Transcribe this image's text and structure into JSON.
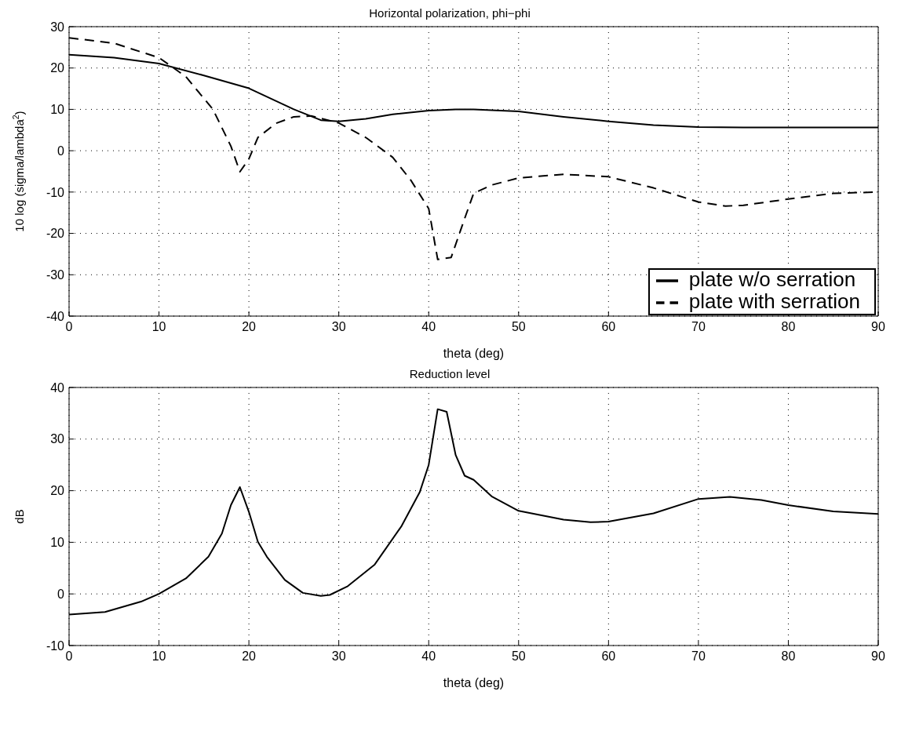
{
  "chart_data": [
    {
      "type": "line",
      "title": "Horizontal polarization, phi−phi",
      "xlabel": "theta (deg)",
      "ylabel": "10 log (sigma/lambda$^{2}$)",
      "xlim": [
        0,
        90
      ],
      "xticks": [
        0,
        10,
        20,
        30,
        40,
        50,
        60,
        70,
        80,
        90
      ],
      "ylim": [
        -40,
        30
      ],
      "yticks": [
        -40,
        -30,
        -20,
        -10,
        0,
        10,
        20,
        30
      ],
      "grid": true,
      "legend": "bottom right",
      "marker": "none",
      "series": [
        {
          "name": "plate w/o serration",
          "color": "#000000",
          "line_style": "solid",
          "x": [
            0,
            5,
            10,
            15,
            20,
            25,
            28,
            30,
            33,
            36,
            40,
            43,
            45,
            50,
            55,
            60,
            65,
            70,
            75,
            80,
            85,
            90
          ],
          "values": [
            23.2,
            22.5,
            21.1,
            18.2,
            15.1,
            10,
            7.4,
            7.1,
            7.7,
            8.8,
            9.7,
            10,
            10,
            9.5,
            8.2,
            7.1,
            6.2,
            5.7,
            5.6,
            5.6,
            5.6,
            5.6
          ]
        },
        {
          "name": "plate with serration",
          "color": "#000000",
          "line_style": "dashed",
          "x": [
            0,
            5,
            10,
            13,
            16,
            18,
            19,
            20,
            21,
            23,
            25,
            27,
            30,
            33,
            36,
            38,
            40,
            41,
            42.5,
            44,
            45,
            47,
            50,
            55,
            60,
            65,
            70,
            73,
            75,
            80,
            85,
            90
          ],
          "values": [
            27.3,
            26,
            22.5,
            17.9,
            10,
            1.1,
            -5.1,
            -2,
            3.2,
            6.6,
            8.2,
            8.4,
            6.7,
            3.2,
            -1.6,
            -7.1,
            -14,
            -26.3,
            -25.8,
            -16.4,
            -10.3,
            -8.3,
            -6.6,
            -5.7,
            -6.3,
            -9,
            -12.4,
            -13.4,
            -13.2,
            -11.7,
            -10.3,
            -10
          ]
        }
      ]
    },
    {
      "type": "line",
      "title": "Reduction level",
      "xlabel": "theta (deg)",
      "ylabel": "dB",
      "xlim": [
        0,
        90
      ],
      "xticks": [
        0,
        10,
        20,
        30,
        40,
        50,
        60,
        70,
        80,
        90
      ],
      "ylim": [
        -10,
        40
      ],
      "yticks": [
        -10,
        0,
        10,
        20,
        30,
        40
      ],
      "grid": true,
      "marker": "none",
      "series": [
        {
          "color": "#000000",
          "line_style": "solid",
          "x": [
            0,
            4,
            8,
            10,
            13,
            15.5,
            17,
            18,
            19,
            20,
            21,
            22,
            24,
            26,
            28,
            29,
            31,
            34,
            37,
            39,
            40,
            41,
            42,
            43,
            44,
            45,
            47,
            50,
            55,
            58,
            60,
            65,
            70,
            73.5,
            77,
            80,
            85,
            90
          ],
          "values": [
            -4,
            -3.5,
            -1.5,
            0,
            3,
            7.2,
            11.7,
            17.2,
            20.7,
            15.9,
            10.1,
            7.2,
            2.7,
            0.2,
            -0.4,
            -0.2,
            1.5,
            5.7,
            13.2,
            19.7,
            25,
            35.8,
            35.3,
            26.9,
            22.9,
            22.1,
            18.9,
            16.1,
            14.4,
            13.9,
            14,
            15.6,
            18.4,
            18.8,
            18.2,
            17.2,
            16,
            15.5
          ]
        }
      ]
    }
  ]
}
